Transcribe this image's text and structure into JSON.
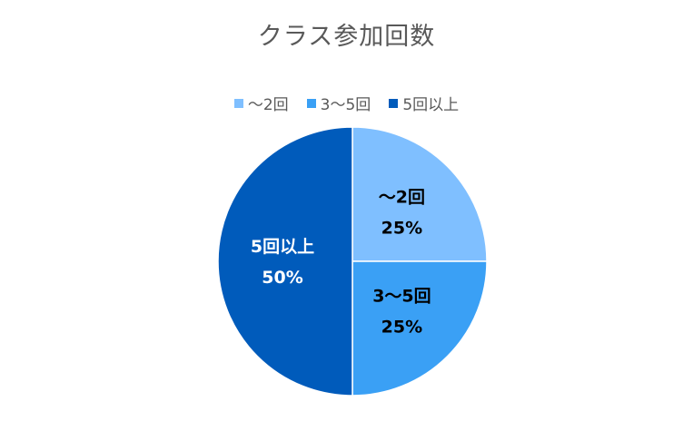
{
  "chart_data": {
    "type": "pie",
    "title": "クラス参加回数",
    "categories": [
      "～2回",
      "3～5回",
      "5回以上"
    ],
    "values": [
      25,
      25,
      50
    ],
    "value_labels": [
      "25%",
      "25%",
      "50%"
    ],
    "colors": [
      "#7fbfff",
      "#3aa0f5",
      "#005bbb"
    ],
    "label_colors": [
      "#000000",
      "#000000",
      "#ffffff"
    ],
    "legend_position": "top",
    "start_angle": "12 o'clock, clockwise"
  }
}
